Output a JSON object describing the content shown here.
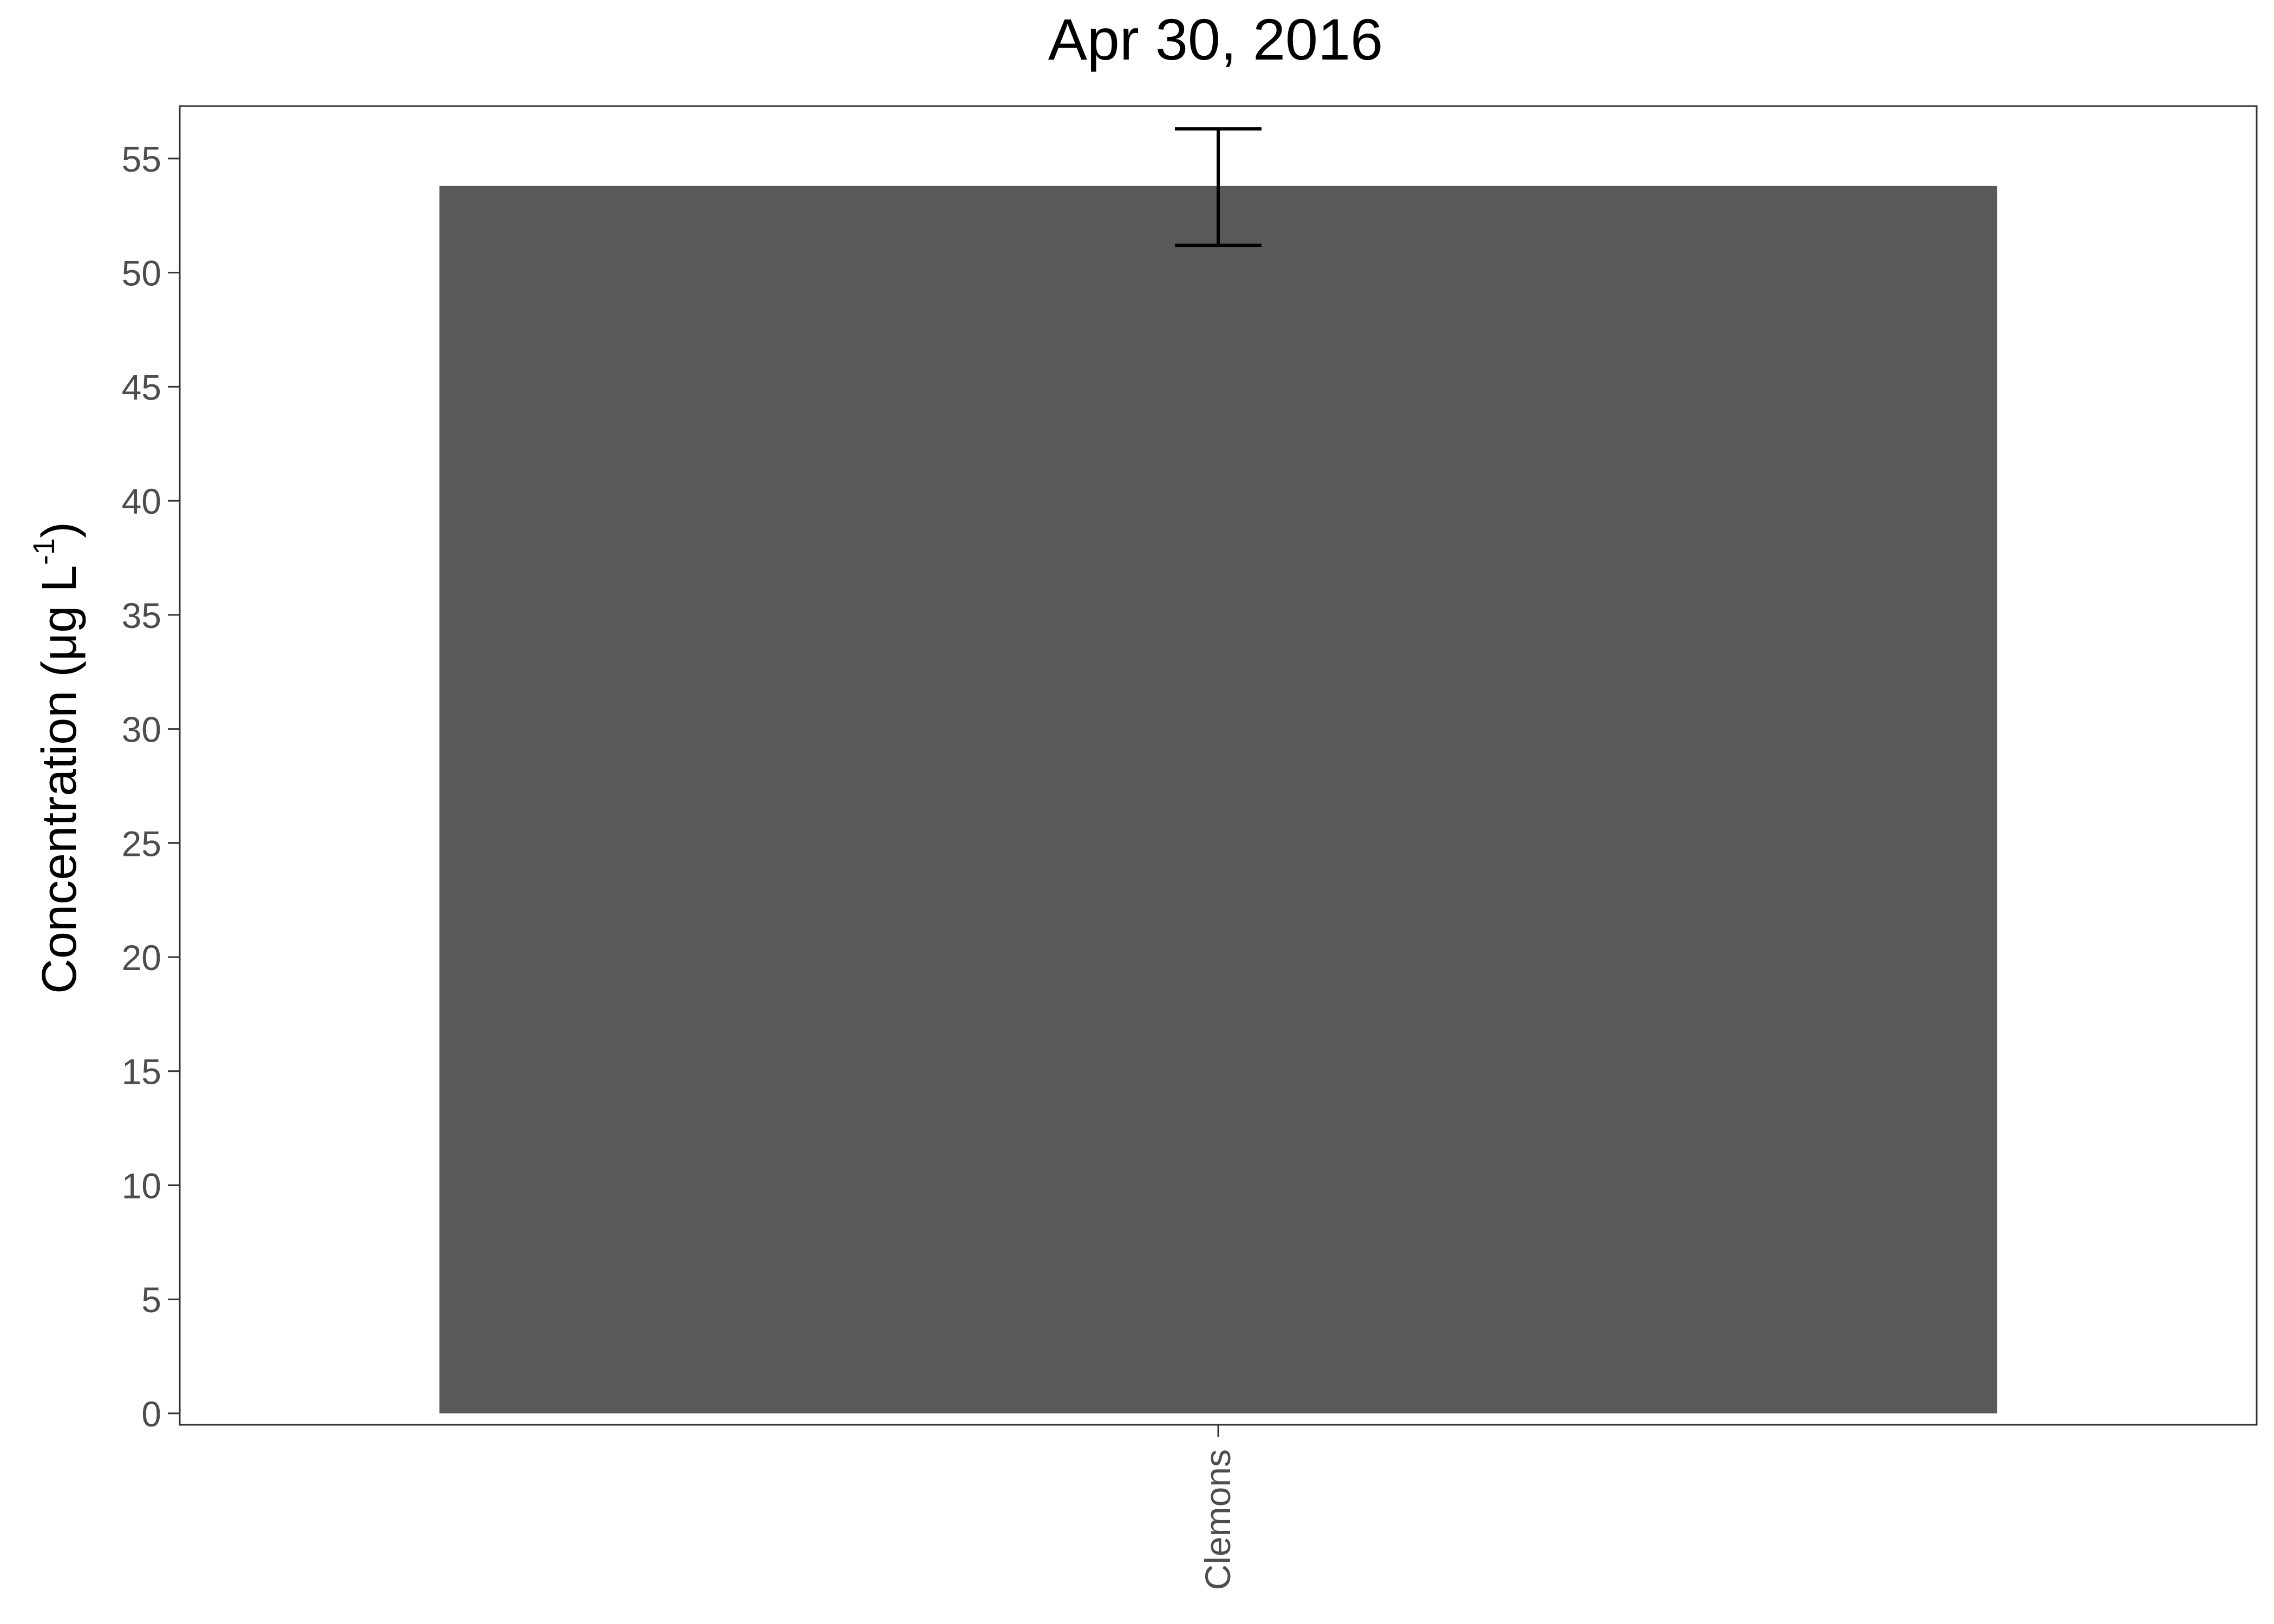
{
  "chart_data": {
    "type": "bar",
    "title": "Apr 30, 2016",
    "ylabel": {
      "main": "Concentration (μg L",
      "superscript": "-1",
      "close": ")"
    },
    "categories": [
      "Clemons"
    ],
    "values": [
      53.8
    ],
    "error_bars": [
      {
        "low": 51.2,
        "high": 56.3
      }
    ],
    "yticks": [
      "0",
      "5",
      "10",
      "15",
      "20",
      "25",
      "30",
      "35",
      "40",
      "45",
      "50",
      "55"
    ],
    "ylim": [
      -0.5,
      57.3
    ],
    "grid": false,
    "colors": {
      "bar": "#595959",
      "axis": "#333333",
      "text": "#000000",
      "tick_text": "#4d4d4d"
    }
  }
}
